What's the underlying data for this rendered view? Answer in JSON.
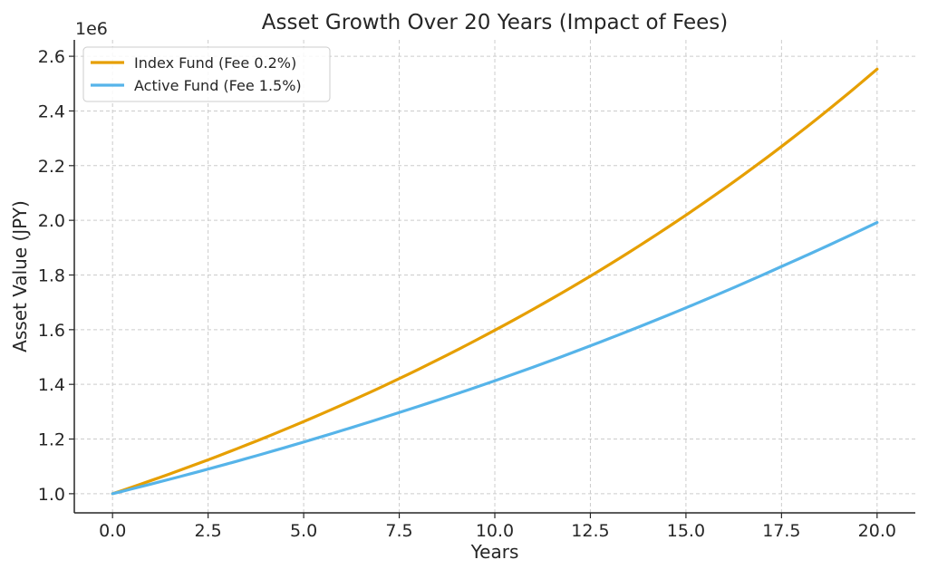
{
  "chart_data": {
    "type": "line",
    "title": "Asset Growth Over 20 Years (Impact of Fees)",
    "xlabel": "Years",
    "ylabel": "Asset Value (JPY)",
    "offset_label": "1e6",
    "xlim": [
      -1,
      21
    ],
    "ylim": [
      0.93,
      2.66
    ],
    "xticks": [
      0,
      2.5,
      5,
      7.5,
      10,
      12.5,
      15,
      17.5,
      20
    ],
    "xtick_labels": [
      "0.0",
      "2.5",
      "5.0",
      "7.5",
      "10.0",
      "12.5",
      "15.0",
      "17.5",
      "20.0"
    ],
    "yticks": [
      1.0,
      1.2,
      1.4,
      1.6,
      1.8,
      2.0,
      2.2,
      2.4,
      2.6
    ],
    "ytick_labels": [
      "1.0",
      "1.2",
      "1.4",
      "1.6",
      "1.8",
      "2.0",
      "2.2",
      "2.4",
      "2.6"
    ],
    "grid": true,
    "legend_position": "top-left",
    "x": [
      0,
      2.5,
      5,
      7.5,
      10,
      12.5,
      15,
      17.5,
      20
    ],
    "series": [
      {
        "name": "Index Fund (Fee 0.2%)",
        "color": "#E69F00",
        "values": [
          1.0,
          1.124,
          1.264,
          1.421,
          1.598,
          1.796,
          2.019,
          2.27,
          2.553
        ]
      },
      {
        "name": "Active Fund (Fee 1.5%)",
        "color": "#56B4E9",
        "values": [
          1.0,
          1.09,
          1.189,
          1.297,
          1.413,
          1.541,
          1.68,
          1.831,
          1.992
        ]
      }
    ]
  }
}
